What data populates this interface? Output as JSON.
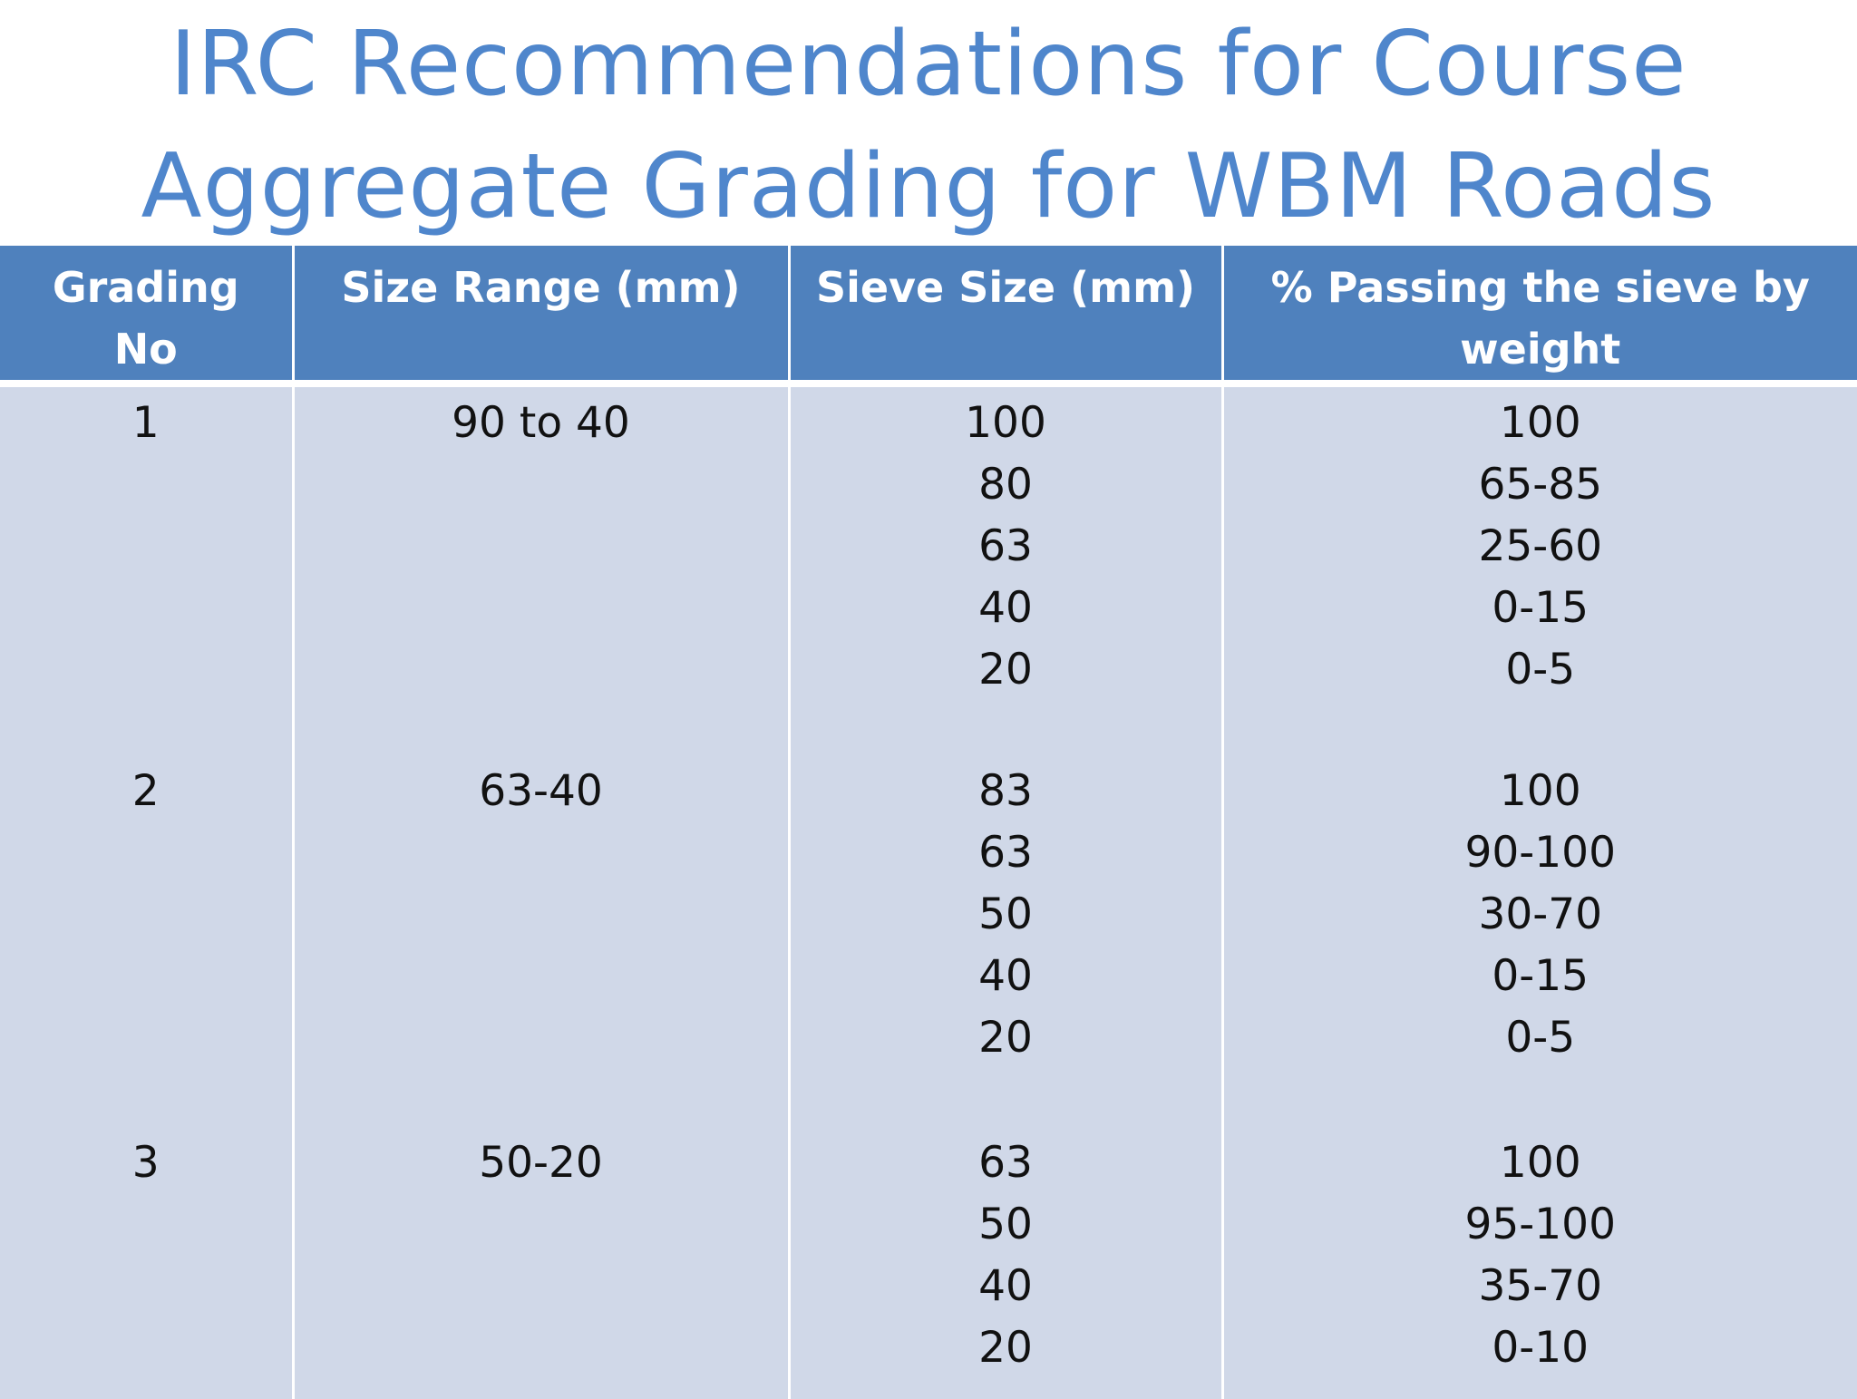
{
  "title": {
    "line1": "IRC Recommendations for Course",
    "line2": "Aggregate Grading for WBM Roads"
  },
  "colors": {
    "title": "#4f86cc",
    "header_bg": "#4f81bd",
    "cell_bg": "#d0d8e8",
    "header_text": "#ffffff"
  },
  "table": {
    "headers": [
      "Grading No",
      "Size Range (mm)",
      "Sieve Size (mm)",
      "% Passing the sieve by weight"
    ],
    "rows": [
      {
        "grading_no": "1",
        "size_range": "90 to 40",
        "sieve_sizes": [
          "100",
          "80",
          "63",
          "40",
          "20"
        ],
        "passing": [
          "100",
          "65-85",
          "25-60",
          "0-15",
          "0-5"
        ]
      },
      {
        "grading_no": "2",
        "size_range": "63-40",
        "sieve_sizes": [
          "83",
          "63",
          "50",
          "40",
          "20"
        ],
        "passing": [
          "100",
          "90-100",
          "30-70",
          "0-15",
          "0-5"
        ]
      },
      {
        "grading_no": "3",
        "size_range": "50-20",
        "sieve_sizes": [
          "63",
          "50",
          "40",
          "20"
        ],
        "passing": [
          "100",
          "95-100",
          "35-70",
          "0-10"
        ]
      }
    ]
  }
}
